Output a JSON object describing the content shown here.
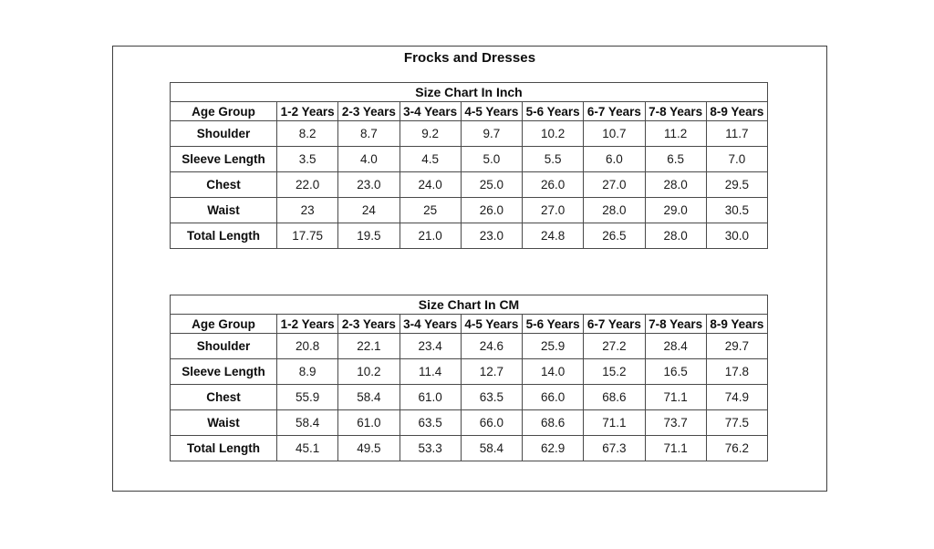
{
  "document": {
    "title": "Frocks and Dresses"
  },
  "tables": [
    {
      "title": "Size Chart In Inch",
      "header": [
        "Age Group",
        "1-2 Years",
        "2-3 Years",
        "3-4 Years",
        "4-5 Years",
        "5-6 Years",
        "6-7 Years",
        "7-8 Years",
        "8-9 Years"
      ],
      "rows": [
        {
          "label": "Shoulder",
          "values": [
            "8.2",
            "8.7",
            "9.2",
            "9.7",
            "10.2",
            "10.7",
            "11.2",
            "11.7"
          ]
        },
        {
          "label": "Sleeve Length",
          "values": [
            "3.5",
            "4.0",
            "4.5",
            "5.0",
            "5.5",
            "6.0",
            "6.5",
            "7.0"
          ]
        },
        {
          "label": "Chest",
          "values": [
            "22.0",
            "23.0",
            "24.0",
            "25.0",
            "26.0",
            "27.0",
            "28.0",
            "29.5"
          ]
        },
        {
          "label": "Waist",
          "values": [
            "23",
            "24",
            "25",
            "26.0",
            "27.0",
            "28.0",
            "29.0",
            "30.5"
          ]
        },
        {
          "label": "Total Length",
          "values": [
            "17.75",
            "19.5",
            "21.0",
            "23.0",
            "24.8",
            "26.5",
            "28.0",
            "30.0"
          ]
        }
      ]
    },
    {
      "title": "Size Chart In CM",
      "header": [
        "Age Group",
        "1-2 Years",
        "2-3 Years",
        "3-4 Years",
        "4-5 Years",
        "5-6 Years",
        "6-7 Years",
        "7-8 Years",
        "8-9 Years"
      ],
      "rows": [
        {
          "label": "Shoulder",
          "values": [
            "20.8",
            "22.1",
            "23.4",
            "24.6",
            "25.9",
            "27.2",
            "28.4",
            "29.7"
          ]
        },
        {
          "label": "Sleeve Length",
          "values": [
            "8.9",
            "10.2",
            "11.4",
            "12.7",
            "14.0",
            "15.2",
            "16.5",
            "17.8"
          ]
        },
        {
          "label": "Chest",
          "values": [
            "55.9",
            "58.4",
            "61.0",
            "63.5",
            "66.0",
            "68.6",
            "71.1",
            "74.9"
          ]
        },
        {
          "label": "Waist",
          "values": [
            "58.4",
            "61.0",
            "63.5",
            "66.0",
            "68.6",
            "71.1",
            "73.7",
            "77.5"
          ]
        },
        {
          "label": "Total Length",
          "values": [
            "45.1",
            "49.5",
            "53.3",
            "58.4",
            "62.9",
            "67.3",
            "71.1",
            "76.2"
          ]
        }
      ]
    }
  ]
}
